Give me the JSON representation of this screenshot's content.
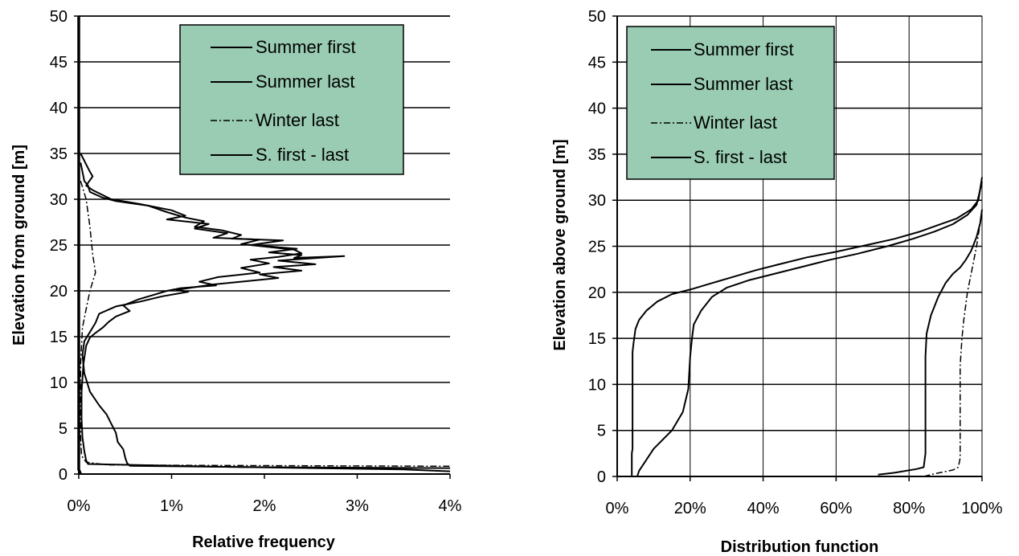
{
  "colors": {
    "legend_fill": "#99ccb2",
    "line": "#000000",
    "background": "#ffffff"
  },
  "chart_data": [
    {
      "type": "line",
      "xlabel": "Relative frequency",
      "ylabel": "Elevation from ground [m]",
      "xlim": [
        0,
        0.04
      ],
      "ylim": [
        0,
        50
      ],
      "x_ticks": [
        "0%",
        "1%",
        "2%",
        "3%",
        "4%"
      ],
      "y_ticks": [
        "0",
        "5",
        "10",
        "15",
        "20",
        "25",
        "30",
        "35",
        "40",
        "45",
        "50"
      ],
      "grid": "horizontal",
      "legend_position": "top-right",
      "legend": [
        "Summer first",
        "Summer last",
        "Winter last",
        "S. first - last"
      ],
      "series": [
        {
          "name": "Summer first",
          "style": "solid",
          "points": [
            [
              0.0002,
              35
            ],
            [
              0.0012,
              33
            ],
            [
              0.0015,
              32.5
            ],
            [
              0.0008,
              31.5
            ],
            [
              0.0015,
              31
            ],
            [
              0.0035,
              30
            ],
            [
              0.0065,
              29.5
            ],
            [
              0.01,
              28.8
            ],
            [
              0.0115,
              28.2
            ],
            [
              0.0095,
              27.8
            ],
            [
              0.014,
              27.3
            ],
            [
              0.0125,
              26.8
            ],
            [
              0.016,
              26.3
            ],
            [
              0.0145,
              25.8
            ],
            [
              0.0195,
              25.6
            ],
            [
              0.0175,
              25.1
            ],
            [
              0.0235,
              24.6
            ],
            [
              0.0205,
              24.2
            ],
            [
              0.024,
              23.9
            ],
            [
              0.0232,
              23.6
            ],
            [
              0.0286,
              23.8
            ],
            [
              0.0215,
              23.3
            ],
            [
              0.0255,
              22.9
            ],
            [
              0.021,
              22.6
            ],
            [
              0.024,
              22.2
            ],
            [
              0.0195,
              21.8
            ],
            [
              0.0215,
              21.4
            ],
            [
              0.0175,
              21
            ],
            [
              0.0145,
              20.7
            ],
            [
              0.0125,
              20.4
            ],
            [
              0.0105,
              20.1
            ],
            [
              0.0118,
              19.9
            ],
            [
              0.009,
              19.4
            ],
            [
              0.0065,
              18.8
            ],
            [
              0.004,
              18.3
            ],
            [
              0.0022,
              17.5
            ],
            [
              0.0018,
              16.5
            ],
            [
              0.0012,
              15.5
            ],
            [
              0.0006,
              14.5
            ],
            [
              0.0004,
              13
            ],
            [
              0.0006,
              11
            ],
            [
              0.0012,
              9
            ],
            [
              0.0022,
              7.5
            ],
            [
              0.003,
              6.5
            ],
            [
              0.0035,
              5.5
            ],
            [
              0.004,
              4.5
            ],
            [
              0.0042,
              3.5
            ],
            [
              0.0048,
              2.7
            ],
            [
              0.005,
              1.8
            ],
            [
              0.0052,
              1.2
            ],
            [
              0.0055,
              0.9
            ],
            [
              0.02,
              0.75
            ],
            [
              0.04,
              0.65
            ]
          ]
        },
        {
          "name": "Summer last",
          "style": "solid",
          "points": [
            [
              0.0002,
              34
            ],
            [
              0.0006,
              32
            ],
            [
              0.001,
              31.5
            ],
            [
              0.0012,
              30.8
            ],
            [
              0.0025,
              30.2
            ],
            [
              0.004,
              29.8
            ],
            [
              0.0075,
              29.3
            ],
            [
              0.0095,
              28.6
            ],
            [
              0.0115,
              28
            ],
            [
              0.0135,
              27.6
            ],
            [
              0.0125,
              27
            ],
            [
              0.0155,
              26.6
            ],
            [
              0.0175,
              26.1
            ],
            [
              0.0165,
              25.7
            ],
            [
              0.022,
              25.5
            ],
            [
              0.0185,
              25
            ],
            [
              0.0232,
              24.5
            ],
            [
              0.024,
              24.1
            ],
            [
              0.0215,
              23.7
            ],
            [
              0.0185,
              23.4
            ],
            [
              0.0205,
              23
            ],
            [
              0.0175,
              22.5
            ],
            [
              0.0195,
              22
            ],
            [
              0.015,
              21.5
            ],
            [
              0.013,
              21
            ],
            [
              0.0148,
              20.6
            ],
            [
              0.011,
              20.3
            ],
            [
              0.0095,
              20
            ],
            [
              0.0082,
              19.6
            ],
            [
              0.0065,
              19.1
            ],
            [
              0.0048,
              18.4
            ],
            [
              0.0055,
              17.8
            ],
            [
              0.004,
              17.2
            ],
            [
              0.0032,
              16.6
            ],
            [
              0.0026,
              16
            ],
            [
              0.0018,
              15.4
            ],
            [
              0.0012,
              14.9
            ],
            [
              0.0008,
              14
            ],
            [
              0.0005,
              12
            ],
            [
              0.0003,
              9
            ],
            [
              0.0003,
              6
            ],
            [
              0.0004,
              4
            ],
            [
              0.0006,
              2.5
            ],
            [
              0.0008,
              1.5
            ],
            [
              0.001,
              1.1
            ],
            [
              0.015,
              0.8
            ],
            [
              0.035,
              0.5
            ],
            [
              0.04,
              0.3
            ]
          ]
        },
        {
          "name": "Winter last",
          "style": "dashdot",
          "points": [
            [
              0.0002,
              32
            ],
            [
              0.0008,
              30
            ],
            [
              0.0012,
              27
            ],
            [
              0.0015,
              24
            ],
            [
              0.0018,
              22
            ],
            [
              0.0012,
              20
            ],
            [
              0.0008,
              18
            ],
            [
              0.0004,
              16
            ],
            [
              0.0002,
              12
            ],
            [
              0.0002,
              8
            ],
            [
              0.0002,
              4
            ],
            [
              0.0003,
              2
            ],
            [
              0.0008,
              1.3
            ],
            [
              0.003,
              1
            ],
            [
              0.012,
              0.95
            ],
            [
              0.04,
              0.85
            ]
          ]
        },
        {
          "name": "S. first - last",
          "style": "solid",
          "points": [
            [
              0,
              50
            ],
            [
              0,
              0.5
            ],
            [
              0.0002,
              0
            ]
          ]
        }
      ]
    },
    {
      "type": "line",
      "xlabel": "Distribution function",
      "ylabel": "Elevation above ground [m]",
      "xlim": [
        0,
        1
      ],
      "ylim": [
        0,
        50
      ],
      "x_ticks": [
        "0%",
        "20%",
        "40%",
        "60%",
        "80%",
        "100%"
      ],
      "y_ticks": [
        "0",
        "5",
        "10",
        "15",
        "20",
        "25",
        "30",
        "35",
        "40",
        "45",
        "50"
      ],
      "grid": "both",
      "legend_position": "top-left",
      "legend": [
        "Summer first",
        "Summer last",
        "Winter last",
        "S. first - last"
      ],
      "series": [
        {
          "name": "Summer first",
          "style": "solid",
          "points": [
            [
              0.04,
              0
            ],
            [
              0.04,
              2.5
            ],
            [
              0.042,
              3
            ],
            [
              0.042,
              13.5
            ],
            [
              0.045,
              14.5
            ],
            [
              0.05,
              16
            ],
            [
              0.06,
              17
            ],
            [
              0.08,
              18
            ],
            [
              0.11,
              19
            ],
            [
              0.15,
              19.8
            ],
            [
              0.2,
              20.3
            ],
            [
              0.26,
              21
            ],
            [
              0.32,
              21.7
            ],
            [
              0.38,
              22.4
            ],
            [
              0.44,
              23
            ],
            [
              0.52,
              23.8
            ],
            [
              0.6,
              24.4
            ],
            [
              0.68,
              25.1
            ],
            [
              0.76,
              25.8
            ],
            [
              0.83,
              26.6
            ],
            [
              0.88,
              27.3
            ],
            [
              0.93,
              28
            ],
            [
              0.97,
              29
            ],
            [
              0.99,
              30
            ],
            [
              1,
              32.5
            ]
          ]
        },
        {
          "name": "Summer last",
          "style": "solid",
          "points": [
            [
              0.055,
              0
            ],
            [
              0.06,
              0.6
            ],
            [
              0.1,
              3
            ],
            [
              0.15,
              5
            ],
            [
              0.18,
              7
            ],
            [
              0.195,
              9.5
            ],
            [
              0.2,
              13
            ],
            [
              0.205,
              15
            ],
            [
              0.21,
              16.5
            ],
            [
              0.23,
              18
            ],
            [
              0.26,
              19.5
            ],
            [
              0.3,
              20.5
            ],
            [
              0.36,
              21.3
            ],
            [
              0.43,
              22
            ],
            [
              0.5,
              22.7
            ],
            [
              0.58,
              23.5
            ],
            [
              0.66,
              24.2
            ],
            [
              0.74,
              25
            ],
            [
              0.81,
              25.8
            ],
            [
              0.87,
              26.6
            ],
            [
              0.92,
              27.4
            ],
            [
              0.96,
              28.4
            ],
            [
              0.985,
              29.5
            ],
            [
              1,
              32
            ]
          ]
        },
        {
          "name": "Winter last",
          "style": "dashdot",
          "points": [
            [
              0.84,
              0
            ],
            [
              0.87,
              0.3
            ],
            [
              0.92,
              0.7
            ],
            [
              0.935,
              1
            ],
            [
              0.94,
              2
            ],
            [
              0.94,
              12
            ],
            [
              0.945,
              15
            ],
            [
              0.95,
              17
            ],
            [
              0.96,
              20
            ],
            [
              0.975,
              23
            ],
            [
              0.985,
              25
            ],
            [
              0.995,
              27.5
            ],
            [
              1,
              29
            ]
          ]
        },
        {
          "name": "S. first - last",
          "style": "solid",
          "points": [
            [
              0.715,
              0.2
            ],
            [
              0.76,
              0.4
            ],
            [
              0.82,
              0.8
            ],
            [
              0.84,
              1
            ],
            [
              0.845,
              2.5
            ],
            [
              0.845,
              13
            ],
            [
              0.848,
              15.5
            ],
            [
              0.86,
              17.5
            ],
            [
              0.88,
              19.5
            ],
            [
              0.9,
              21
            ],
            [
              0.92,
              22
            ],
            [
              0.94,
              22.7
            ],
            [
              0.955,
              23.5
            ],
            [
              0.97,
              24.5
            ],
            [
              0.985,
              26
            ],
            [
              0.995,
              27.5
            ],
            [
              1,
              29
            ]
          ]
        }
      ]
    }
  ]
}
